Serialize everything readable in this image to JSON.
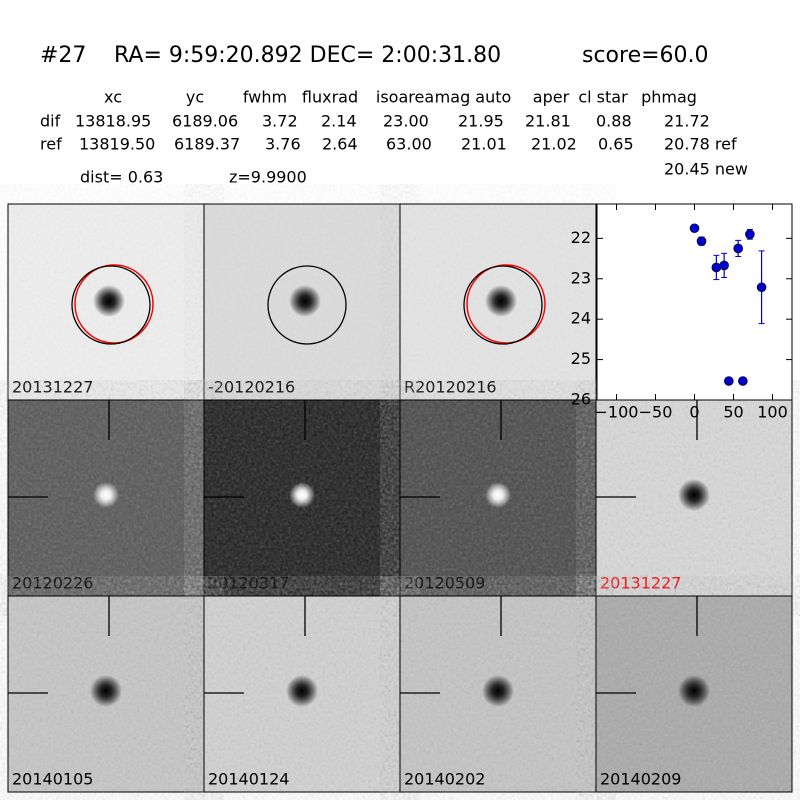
{
  "header": {
    "id": "#27",
    "coords": "RA= 9:59:20.892 DEC= 2:00:31.80",
    "score": "score=60.0"
  },
  "table": {
    "columns": [
      "xc",
      "yc",
      "fwhm",
      "fluxrad",
      "isoarea",
      "mag auto",
      "aper",
      "cl star",
      "phmag"
    ],
    "rows": [
      [
        "dif",
        "13818.95",
        "6189.06",
        "3.72",
        "2.14",
        "23.00",
        "21.95",
        "21.81",
        "0.88",
        "21.72"
      ],
      [
        "ref",
        "13819.50",
        "6189.37",
        "3.76",
        "2.64",
        "63.00",
        "21.01",
        "21.02",
        "0.65",
        "20.78 ref"
      ]
    ],
    "new_phmag": "20.45 new"
  },
  "dist": "dist=  0.63",
  "z": "z=9.9900",
  "panels": [
    {
      "label": "20131227",
      "color": "#000000"
    },
    {
      "label": "-20120216",
      "color": "#000000"
    },
    {
      "label": "R20120216",
      "color": "#000000"
    },
    {
      "label": "20120226",
      "color": "#000000"
    },
    {
      "label": "20120317",
      "color": "#000000"
    },
    {
      "label": "20120509",
      "color": "#000000"
    },
    {
      "label": "20131227",
      "color": "#ff0000"
    },
    {
      "label": "20140105",
      "color": "#000000"
    },
    {
      "label": "20140124",
      "color": "#000000"
    },
    {
      "label": "20140202",
      "color": "#000000"
    },
    {
      "label": "20140209",
      "color": "#000000"
    }
  ],
  "chart_data": {
    "type": "scatter",
    "series": [
      {
        "color": "#0000cc",
        "x": [
          0,
          9,
          28,
          38,
          44,
          56,
          62,
          71,
          86
        ],
        "values": [
          21.75,
          22.07,
          22.72,
          22.67,
          25.53,
          22.25,
          25.53,
          21.9,
          23.21
        ],
        "errors": [
          0.05,
          0.1,
          0.3,
          0.3,
          0,
          0.2,
          0,
          0.12,
          0.9
        ]
      }
    ],
    "xlim": [
      -125,
      125
    ],
    "xticks": [
      {
        "value": -100,
        "label": "−100"
      },
      {
        "value": -50,
        "label": "−50"
      },
      0,
      50,
      100
    ],
    "ylim": [
      26,
      21.15
    ],
    "yticks": [
      22,
      23,
      24,
      25,
      26
    ],
    "inverted_y": true
  }
}
